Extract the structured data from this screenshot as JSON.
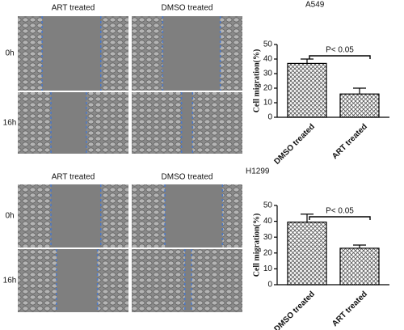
{
  "panels": [
    {
      "cell_line": "A549",
      "columns": [
        "ART treated",
        "DMSO treated"
      ],
      "rows": [
        "0h",
        "16h"
      ]
    },
    {
      "cell_line": "H1299",
      "columns": [
        "ART treated",
        "DMSO treated"
      ],
      "rows": [
        "0h",
        "16h"
      ]
    }
  ],
  "chart_data": [
    {
      "type": "bar",
      "ylabel": "Cell migration(%)",
      "categories": [
        "DMSO treated",
        "ART treated"
      ],
      "values": [
        37,
        16
      ],
      "errors": [
        3,
        4
      ],
      "ylim": [
        0,
        50
      ],
      "yticks": [
        0,
        10,
        20,
        30,
        40,
        50
      ],
      "annotation": "P< 0.05",
      "color": "#555555"
    },
    {
      "type": "bar",
      "ylabel": "Cell migration(%)",
      "categories": [
        "DMSO treated",
        "ART treated"
      ],
      "values": [
        39.5,
        23
      ],
      "errors": [
        5,
        2
      ],
      "ylim": [
        0,
        50
      ],
      "yticks": [
        0,
        10,
        20,
        30,
        40,
        50
      ],
      "annotation": "P< 0.05",
      "color": "#555555"
    }
  ]
}
